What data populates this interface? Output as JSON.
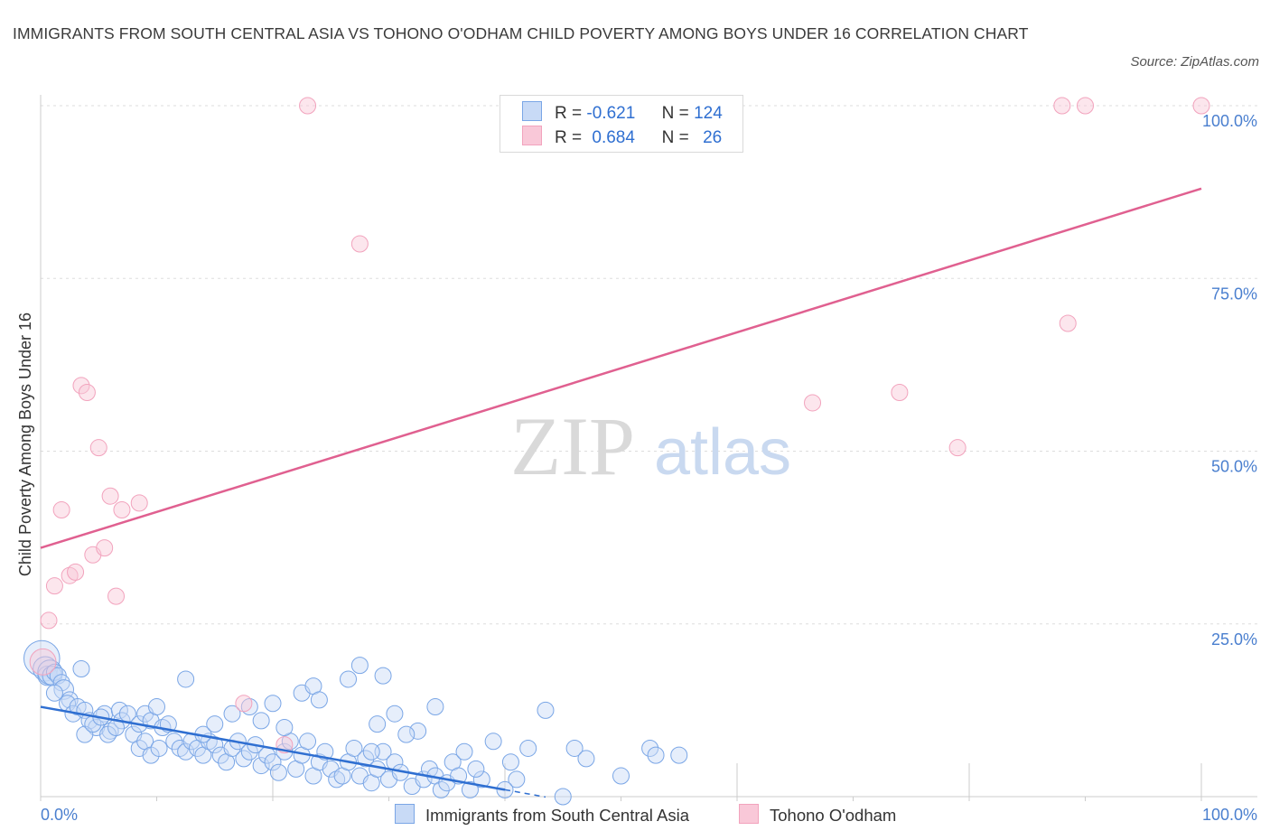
{
  "title": "IMMIGRANTS FROM SOUTH CENTRAL ASIA VS TOHONO O'ODHAM CHILD POVERTY AMONG BOYS UNDER 16 CORRELATION CHART",
  "source": "Source: ZipAtlas.com",
  "colors": {
    "blue": "#7aa6e6",
    "blue_line": "#2f6fd1",
    "pink": "#f2a3bd",
    "pink_line": "#e06090",
    "axis_text": "#4a7fcf"
  },
  "legend": {
    "rows": [
      {
        "r_label": "R =",
        "r_value": "-0.621",
        "n_label": "N =",
        "n_value": "124"
      },
      {
        "r_label": "R =",
        "r_value": "0.684",
        "n_label": "N =",
        "n_value": "26"
      }
    ]
  },
  "watermark": {
    "zip": "ZIP",
    "atlas": "atlas"
  },
  "chart_data": {
    "type": "scatter",
    "xlabel": "",
    "ylabel": "Child Poverty Among Boys Under 16",
    "xlim": [
      0,
      100
    ],
    "ylim": [
      0,
      100
    ],
    "x_tick_labels": [
      "0.0%",
      "100.0%"
    ],
    "y_ticks": [
      25,
      50,
      75,
      100
    ],
    "y_tick_labels": [
      "25.0%",
      "50.0%",
      "75.0%",
      "100.0%"
    ],
    "legend_position": "top-center",
    "series": [
      {
        "name": "Immigrants from South Central Asia",
        "color": "#7aa6e6",
        "trend": {
          "x0": 0,
          "y0": 13,
          "x1": 40,
          "y1": 1,
          "dash_to_x": 43.5
        },
        "points": [
          [
            0.1,
            20,
            2.2
          ],
          [
            0.4,
            18.5,
            1.5
          ],
          [
            0.6,
            17.5,
            1.2
          ],
          [
            0.8,
            18,
            1.5
          ],
          [
            1.0,
            17.5,
            1.2
          ],
          [
            1.2,
            18,
            1
          ],
          [
            1.5,
            17.5,
            1
          ],
          [
            1.8,
            16.5,
            1
          ],
          [
            2.0,
            15.5,
            1.2
          ],
          [
            1.2,
            15,
            1
          ],
          [
            2.5,
            14,
            1
          ],
          [
            3.5,
            18.5,
            1
          ],
          [
            2.3,
            13.5,
            1
          ],
          [
            2.8,
            12,
            1
          ],
          [
            3.2,
            13,
            1
          ],
          [
            3.8,
            12.5,
            1
          ],
          [
            4.2,
            11,
            1
          ],
          [
            4.8,
            10,
            1
          ],
          [
            5.5,
            12,
            1
          ],
          [
            6.0,
            9.5,
            1
          ],
          [
            6.8,
            12.5,
            1
          ],
          [
            7.0,
            11,
            1
          ],
          [
            3.8,
            9,
            1
          ],
          [
            4.5,
            10.5,
            1
          ],
          [
            5.2,
            11.5,
            1
          ],
          [
            5.8,
            9,
            1
          ],
          [
            6.5,
            10,
            1
          ],
          [
            7.5,
            12,
            1
          ],
          [
            8.0,
            9,
            1
          ],
          [
            8.5,
            10.5,
            1
          ],
          [
            9.0,
            12,
            1
          ],
          [
            9.5,
            11,
            1
          ],
          [
            10.0,
            13,
            1
          ],
          [
            10.5,
            10,
            1
          ],
          [
            11.0,
            10.5,
            1
          ],
          [
            8.5,
            7,
            1
          ],
          [
            9.0,
            8,
            1
          ],
          [
            9.5,
            6,
            1
          ],
          [
            10.2,
            7,
            1
          ],
          [
            11.5,
            8,
            1
          ],
          [
            12.0,
            7,
            1
          ],
          [
            12.5,
            6.5,
            1
          ],
          [
            13.0,
            8,
            1
          ],
          [
            13.5,
            7,
            1
          ],
          [
            14.0,
            6,
            1
          ],
          [
            14.5,
            8,
            1
          ],
          [
            15.0,
            7.5,
            1
          ],
          [
            15.5,
            6,
            1
          ],
          [
            16.0,
            5,
            1
          ],
          [
            16.5,
            7,
            1
          ],
          [
            17.0,
            8,
            1
          ],
          [
            17.5,
            5.5,
            1
          ],
          [
            18.0,
            6.5,
            1
          ],
          [
            18.5,
            7.5,
            1
          ],
          [
            19.0,
            4.5,
            1
          ],
          [
            19.5,
            6,
            1
          ],
          [
            20.0,
            5,
            1
          ],
          [
            20.5,
            3.5,
            1
          ],
          [
            21.0,
            6.5,
            1
          ],
          [
            21.5,
            8,
            1
          ],
          [
            22.0,
            4,
            1
          ],
          [
            22.5,
            6,
            1
          ],
          [
            23.0,
            8,
            1
          ],
          [
            23.5,
            3,
            1
          ],
          [
            24.0,
            5,
            1
          ],
          [
            24.5,
            6.5,
            1
          ],
          [
            25.0,
            4,
            1
          ],
          [
            25.5,
            2.5,
            1
          ],
          [
            26.0,
            3,
            1
          ],
          [
            26.5,
            5,
            1
          ],
          [
            27.0,
            7,
            1
          ],
          [
            27.5,
            3,
            1
          ],
          [
            28.0,
            5.5,
            1
          ],
          [
            28.5,
            2,
            1
          ],
          [
            29.0,
            4,
            1
          ],
          [
            29.5,
            6.5,
            1
          ],
          [
            30.0,
            2.5,
            1
          ],
          [
            30.5,
            5,
            1
          ],
          [
            31.0,
            3.5,
            1
          ],
          [
            32.0,
            1.5,
            1
          ],
          [
            32.5,
            9.5,
            1
          ],
          [
            33.0,
            2.5,
            1
          ],
          [
            33.5,
            4,
            1
          ],
          [
            34.0,
            3,
            1
          ],
          [
            34.5,
            1,
            1
          ],
          [
            35.0,
            2,
            1
          ],
          [
            35.5,
            5,
            1
          ],
          [
            36.0,
            3,
            1
          ],
          [
            37.0,
            1,
            1
          ],
          [
            38.0,
            2.5,
            1
          ],
          [
            16.5,
            12,
            1
          ],
          [
            19.0,
            11,
            1
          ],
          [
            21.0,
            10,
            1
          ],
          [
            22.5,
            15,
            1
          ],
          [
            23.5,
            16,
            1
          ],
          [
            24.0,
            14,
            1
          ],
          [
            26.5,
            17,
            1
          ],
          [
            27.5,
            19,
            1
          ],
          [
            29.0,
            10.5,
            1
          ],
          [
            31.5,
            9,
            1
          ],
          [
            34.0,
            13,
            1
          ],
          [
            36.5,
            6.5,
            1
          ],
          [
            39.0,
            8,
            1
          ],
          [
            37.5,
            4,
            1
          ],
          [
            40.5,
            5,
            1
          ],
          [
            41.0,
            2.5,
            1
          ],
          [
            42.0,
            7,
            1
          ],
          [
            43.5,
            12.5,
            1
          ],
          [
            46.0,
            7,
            1
          ],
          [
            47.0,
            5.5,
            1
          ],
          [
            50.0,
            3,
            1
          ],
          [
            52.5,
            7,
            1
          ],
          [
            55.0,
            6,
            1
          ],
          [
            14.0,
            9,
            1
          ],
          [
            15.0,
            10.5,
            1
          ],
          [
            18.0,
            13,
            1
          ],
          [
            20.0,
            13.5,
            1
          ],
          [
            28.5,
            6.5,
            1
          ],
          [
            12.5,
            17,
            1
          ],
          [
            29.5,
            17.5,
            1
          ],
          [
            30.5,
            12,
            1
          ],
          [
            40.0,
            1,
            1
          ],
          [
            53.0,
            6,
            1
          ],
          [
            45.0,
            0,
            1
          ]
        ]
      },
      {
        "name": "Tohono O'odham",
        "color": "#f2a3bd",
        "trend": {
          "x0": 0,
          "y0": 36,
          "x1": 100,
          "y1": 88
        },
        "points": [
          [
            0.2,
            19.5,
            1.6
          ],
          [
            0.7,
            25.5,
            1
          ],
          [
            1.2,
            30.5,
            1
          ],
          [
            1.8,
            41.5,
            1
          ],
          [
            2.5,
            32,
            1
          ],
          [
            3.0,
            32.5,
            1
          ],
          [
            3.5,
            59.5,
            1
          ],
          [
            4.0,
            58.5,
            1
          ],
          [
            4.5,
            35,
            1
          ],
          [
            5.0,
            50.5,
            1
          ],
          [
            5.5,
            36,
            1
          ],
          [
            6.0,
            43.5,
            1
          ],
          [
            6.5,
            29,
            1
          ],
          [
            7.0,
            41.5,
            1
          ],
          [
            8.5,
            42.5,
            1
          ],
          [
            17.5,
            13.5,
            1
          ],
          [
            21.0,
            7.5,
            1
          ],
          [
            23.0,
            100,
            1
          ],
          [
            27.5,
            80,
            1
          ],
          [
            66.5,
            57,
            1
          ],
          [
            74.0,
            58.5,
            1
          ],
          [
            79.0,
            50.5,
            1
          ],
          [
            88.0,
            100,
            1
          ],
          [
            88.5,
            68.5,
            1
          ],
          [
            90.0,
            100,
            1
          ],
          [
            100.0,
            100,
            1
          ]
        ]
      }
    ]
  },
  "bottom_legend": {
    "series_a": "Immigrants from South Central Asia",
    "series_b": "Tohono O'odham"
  }
}
